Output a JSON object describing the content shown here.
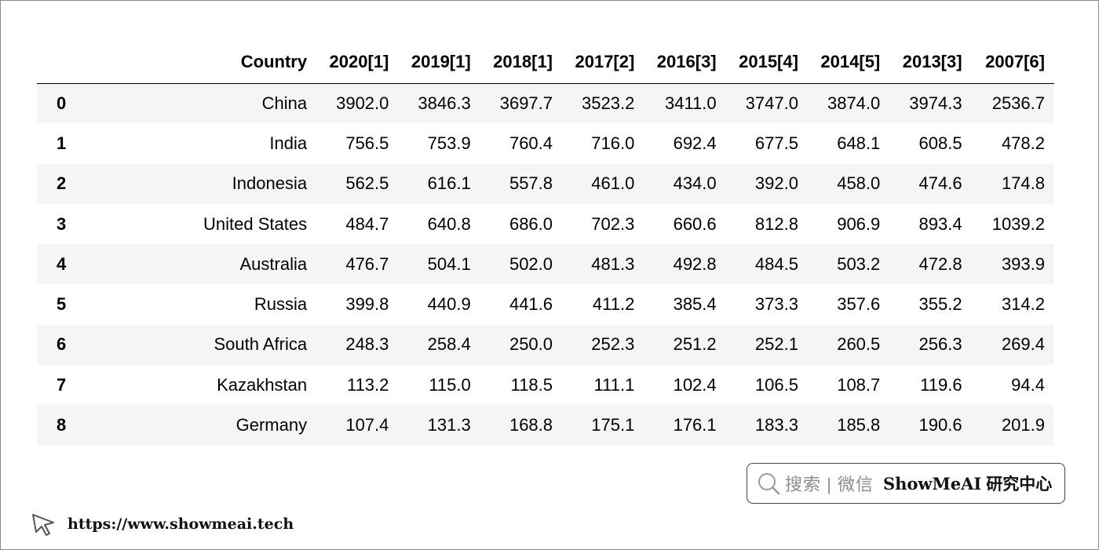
{
  "table": {
    "index_header": "",
    "columns": [
      "Country",
      "2020[1]",
      "2019[1]",
      "2018[1]",
      "2017[2]",
      "2016[3]",
      "2015[4]",
      "2014[5]",
      "2013[3]",
      "2007[6]"
    ],
    "rows": [
      {
        "index": "0",
        "cells": [
          "China",
          "3902.0",
          "3846.3",
          "3697.7",
          "3523.2",
          "3411.0",
          "3747.0",
          "3874.0",
          "3974.3",
          "2536.7"
        ]
      },
      {
        "index": "1",
        "cells": [
          "India",
          "756.5",
          "753.9",
          "760.4",
          "716.0",
          "692.4",
          "677.5",
          "648.1",
          "608.5",
          "478.2"
        ]
      },
      {
        "index": "2",
        "cells": [
          "Indonesia",
          "562.5",
          "616.1",
          "557.8",
          "461.0",
          "434.0",
          "392.0",
          "458.0",
          "474.6",
          "174.8"
        ]
      },
      {
        "index": "3",
        "cells": [
          "United States",
          "484.7",
          "640.8",
          "686.0",
          "702.3",
          "660.6",
          "812.8",
          "906.9",
          "893.4",
          "1039.2"
        ]
      },
      {
        "index": "4",
        "cells": [
          "Australia",
          "476.7",
          "504.1",
          "502.0",
          "481.3",
          "492.8",
          "484.5",
          "503.2",
          "472.8",
          "393.9"
        ]
      },
      {
        "index": "5",
        "cells": [
          "Russia",
          "399.8",
          "440.9",
          "441.6",
          "411.2",
          "385.4",
          "373.3",
          "357.6",
          "355.2",
          "314.2"
        ]
      },
      {
        "index": "6",
        "cells": [
          "South Africa",
          "248.3",
          "258.4",
          "250.0",
          "252.3",
          "251.2",
          "252.1",
          "260.5",
          "256.3",
          "269.4"
        ]
      },
      {
        "index": "7",
        "cells": [
          "Kazakhstan",
          "113.2",
          "115.0",
          "118.5",
          "111.1",
          "102.4",
          "106.5",
          "108.7",
          "119.6",
          "94.4"
        ]
      },
      {
        "index": "8",
        "cells": [
          "Germany",
          "107.4",
          "131.3",
          "168.8",
          "175.1",
          "176.1",
          "183.3",
          "185.8",
          "190.6",
          "201.9"
        ]
      }
    ]
  },
  "search": {
    "icon": "search-icon",
    "hint": "搜索 | 微信",
    "brand": "ShowMeAI",
    "brand_cn": "研究中心"
  },
  "footer": {
    "icon": "cursor-icon",
    "url": "https://www.showmeai.tech"
  },
  "colors": {
    "row_stripe": "#f5f5f5",
    "border": "#8a8a8a",
    "hint_text": "#8c8c8c"
  }
}
